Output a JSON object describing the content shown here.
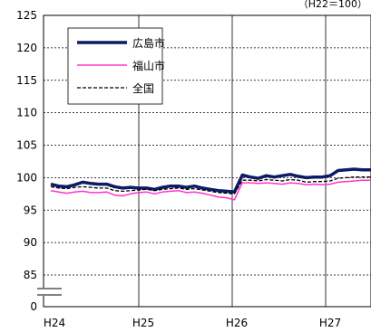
{
  "chart_data": {
    "type": "line",
    "title": "",
    "xlabel": "",
    "ylabel": "",
    "unit_note": "（H22＝100）",
    "ylim": [
      0,
      125
    ],
    "axis_break": true,
    "x": [
      "H24",
      "",
      "",
      "",
      "",
      "",
      "",
      "",
      "",
      "",
      "",
      "",
      "H25",
      "",
      "",
      "",
      "",
      "",
      "",
      "",
      "",
      "",
      "",
      "",
      "H26",
      "",
      "",
      "",
      "",
      "",
      "",
      "",
      "",
      "",
      "",
      "",
      "H27",
      "",
      "",
      "",
      "",
      ""
    ],
    "x_tick_labels": [
      "H24",
      "H25",
      "H26",
      "H27"
    ],
    "y_tick_labels": [
      "125",
      "120",
      "115",
      "110",
      "105",
      "100",
      "95",
      "90",
      "85",
      "0"
    ],
    "grid": true,
    "legend_position": "top-left",
    "series": [
      {
        "name": "広島市",
        "color": "#0d1a66",
        "values": [
          99.0,
          98.7,
          98.6,
          98.9,
          99.3,
          99.1,
          99.0,
          99.0,
          98.6,
          98.4,
          98.5,
          98.4,
          98.4,
          98.2,
          98.5,
          98.7,
          98.7,
          98.5,
          98.7,
          98.4,
          98.2,
          98.0,
          97.9,
          97.8,
          100.4,
          100.1,
          99.9,
          100.3,
          100.1,
          100.3,
          100.5,
          100.2,
          100.0,
          100.1,
          100.1,
          100.3,
          101.1,
          101.2,
          101.3,
          101.2,
          101.2,
          101.3
        ]
      },
      {
        "name": "福山市",
        "color": "#ff33cc",
        "values": [
          98.0,
          97.8,
          97.6,
          97.8,
          97.9,
          97.7,
          97.7,
          97.8,
          97.3,
          97.2,
          97.5,
          97.7,
          97.8,
          97.5,
          97.8,
          97.9,
          98.0,
          97.7,
          97.8,
          97.6,
          97.3,
          97.0,
          96.9,
          96.6,
          99.2,
          99.2,
          99.1,
          99.2,
          99.1,
          99.0,
          99.2,
          99.1,
          98.9,
          99.0,
          98.9,
          99.0,
          99.3,
          99.4,
          99.5,
          99.6,
          99.6,
          99.7
        ]
      },
      {
        "name": "全国",
        "color": "#000000",
        "values": [
          98.6,
          98.4,
          98.3,
          98.5,
          98.6,
          98.5,
          98.4,
          98.4,
          98.0,
          97.9,
          98.0,
          98.1,
          98.2,
          98.0,
          98.2,
          98.3,
          98.4,
          98.2,
          98.3,
          98.1,
          97.9,
          97.7,
          97.6,
          97.5,
          99.6,
          99.6,
          99.5,
          99.7,
          99.6,
          99.5,
          99.7,
          99.6,
          99.3,
          99.4,
          99.4,
          99.5,
          99.9,
          100.0,
          100.1,
          100.1,
          100.1,
          100.2
        ]
      }
    ]
  }
}
